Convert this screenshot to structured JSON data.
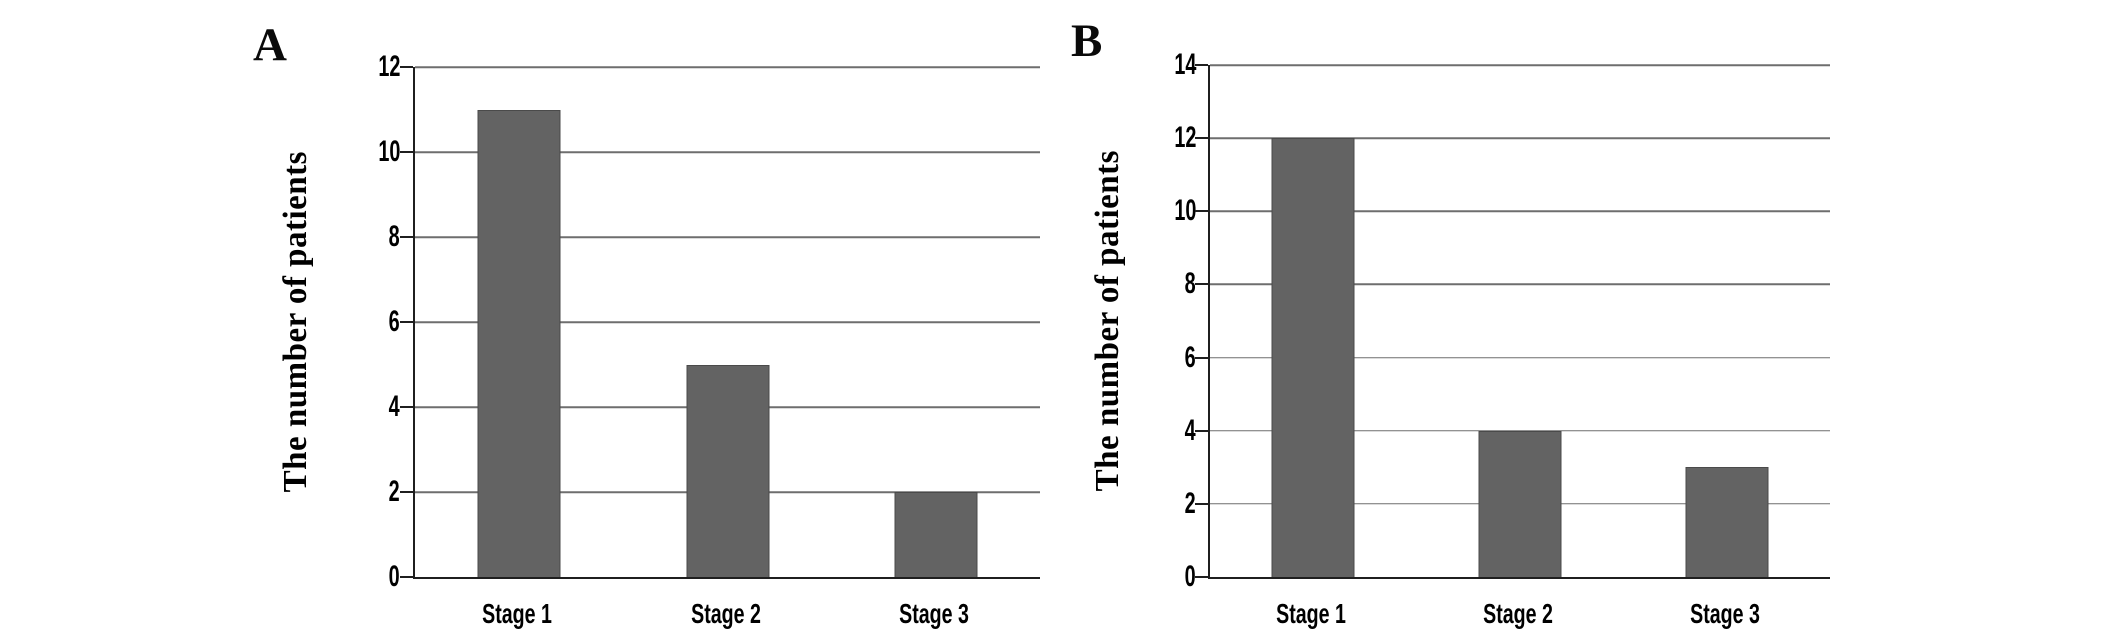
{
  "figure_title": "",
  "colors": {
    "bar_fill": "#636363",
    "bar_border": "#4a4a4a",
    "gridline": "#6e6e6e",
    "axis": "#1f1f1f",
    "text": "#000000",
    "background": "#ffffff"
  },
  "chart_data": [
    {
      "type": "bar",
      "panel_label": "A",
      "title": "",
      "xlabel": "",
      "ylabel": "The number of patients",
      "categories": [
        "Stage 1",
        "Stage 2",
        "Stage 3"
      ],
      "values": [
        11,
        5,
        2
      ],
      "ylim": [
        0,
        12
      ],
      "yticks": [
        0,
        2,
        4,
        6,
        8,
        10,
        12
      ],
      "grid": "horizontal-on",
      "legend": "none"
    },
    {
      "type": "bar",
      "panel_label": "B",
      "title": "",
      "xlabel": "",
      "ylabel": "The number of patients",
      "categories": [
        "Stage 1",
        "Stage 2",
        "Stage 3"
      ],
      "values": [
        12,
        4,
        3
      ],
      "ylim": [
        0,
        14
      ],
      "yticks": [
        0,
        2,
        4,
        6,
        8,
        10,
        12,
        14
      ],
      "grid": "horizontal-on",
      "legend": "none"
    }
  ]
}
